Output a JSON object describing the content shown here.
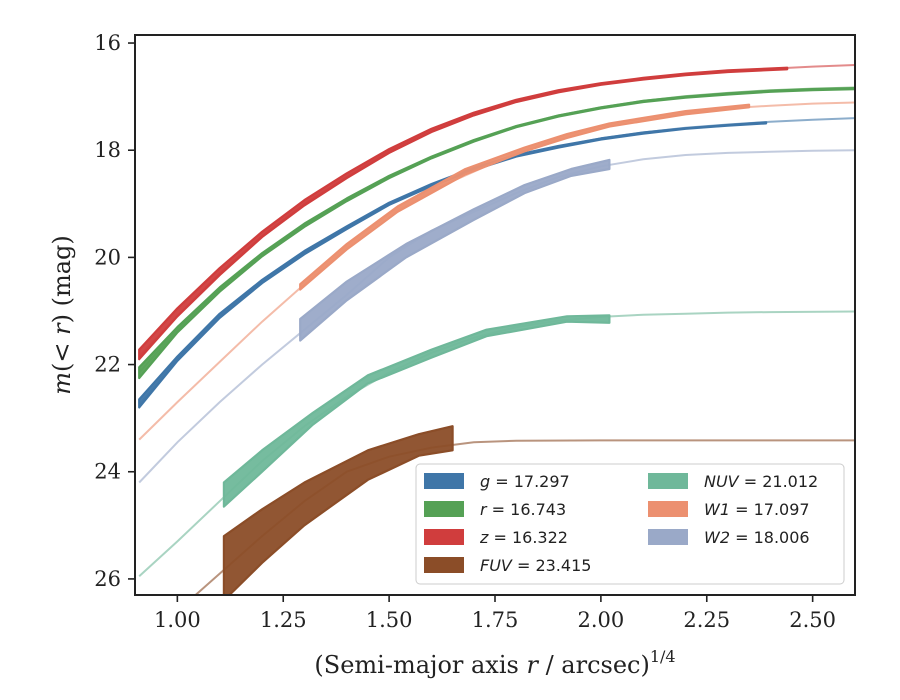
{
  "chart_data": {
    "type": "line",
    "title": "",
    "xlabel": "(Semi-major axis r / arcsec)",
    "xlabel_parts": {
      "pre": "(Semi-major axis ",
      "var": "r",
      "post": " / arcsec)",
      "sup": "1/4"
    },
    "ylabel_parts": {
      "var": "m",
      "mid": "(< ",
      "var2": "r",
      "post": ") (mag)"
    },
    "xlim": [
      0.9,
      2.6
    ],
    "ylim": [
      26.3,
      15.85
    ],
    "y_inverted": true,
    "xticks": [
      "1.00",
      "1.25",
      "1.50",
      "1.75",
      "2.00",
      "2.25",
      "2.50"
    ],
    "xtick_values": [
      1.0,
      1.25,
      1.5,
      1.75,
      2.0,
      2.25,
      2.5
    ],
    "yticks": [
      "16",
      "18",
      "20",
      "22",
      "24",
      "26"
    ],
    "ytick_values": [
      16,
      18,
      20,
      22,
      24,
      26
    ],
    "grid": false,
    "legend_position": "lower-right",
    "series": [
      {
        "key": "g",
        "label": "g",
        "value": "17.297",
        "color": "#3f76a8",
        "model": [
          [
            0.91,
            22.75
          ],
          [
            1.0,
            21.9
          ],
          [
            1.1,
            21.1
          ],
          [
            1.2,
            20.45
          ],
          [
            1.3,
            19.92
          ],
          [
            1.4,
            19.45
          ],
          [
            1.5,
            19.0
          ],
          [
            1.6,
            18.65
          ],
          [
            1.7,
            18.35
          ],
          [
            1.8,
            18.1
          ],
          [
            1.9,
            17.93
          ],
          [
            2.0,
            17.78
          ],
          [
            2.1,
            17.67
          ],
          [
            2.2,
            17.58
          ],
          [
            2.3,
            17.52
          ],
          [
            2.4,
            17.47
          ],
          [
            2.5,
            17.43
          ],
          [
            2.6,
            17.4
          ]
        ],
        "data_upper": [
          [
            0.91,
            22.65
          ],
          [
            1.0,
            21.85
          ],
          [
            1.1,
            21.05
          ],
          [
            1.2,
            20.42
          ],
          [
            1.3,
            19.88
          ],
          [
            1.4,
            19.42
          ],
          [
            1.5,
            18.98
          ],
          [
            1.6,
            18.63
          ],
          [
            1.7,
            18.33
          ],
          [
            1.8,
            18.09
          ],
          [
            1.9,
            17.92
          ],
          [
            2.0,
            17.78
          ],
          [
            2.1,
            17.67
          ],
          [
            2.2,
            17.59
          ],
          [
            2.3,
            17.53
          ],
          [
            2.39,
            17.48
          ]
        ],
        "data_lower": [
          [
            0.91,
            22.8
          ],
          [
            1.0,
            21.93
          ],
          [
            1.1,
            21.13
          ],
          [
            1.2,
            20.48
          ],
          [
            1.3,
            19.94
          ],
          [
            1.4,
            19.47
          ],
          [
            1.5,
            19.02
          ],
          [
            1.6,
            18.67
          ],
          [
            1.7,
            18.37
          ],
          [
            1.8,
            18.12
          ],
          [
            1.9,
            17.95
          ],
          [
            2.0,
            17.8
          ],
          [
            2.1,
            17.69
          ],
          [
            2.2,
            17.6
          ],
          [
            2.3,
            17.54
          ],
          [
            2.39,
            17.5
          ]
        ]
      },
      {
        "key": "r",
        "label": "r",
        "value": "16.743",
        "color": "#55a155",
        "model": [
          [
            0.91,
            22.15
          ],
          [
            1.0,
            21.35
          ],
          [
            1.1,
            20.6
          ],
          [
            1.2,
            19.95
          ],
          [
            1.3,
            19.4
          ],
          [
            1.4,
            18.92
          ],
          [
            1.5,
            18.5
          ],
          [
            1.6,
            18.13
          ],
          [
            1.7,
            17.82
          ],
          [
            1.8,
            17.55
          ],
          [
            1.9,
            17.35
          ],
          [
            2.0,
            17.2
          ],
          [
            2.1,
            17.08
          ],
          [
            2.2,
            16.99
          ],
          [
            2.3,
            16.93
          ],
          [
            2.4,
            16.88
          ],
          [
            2.5,
            16.85
          ],
          [
            2.6,
            16.83
          ]
        ],
        "data_upper": [
          [
            0.91,
            22.05
          ],
          [
            1.0,
            21.3
          ],
          [
            1.1,
            20.56
          ],
          [
            1.2,
            19.92
          ],
          [
            1.3,
            19.37
          ],
          [
            1.4,
            18.9
          ],
          [
            1.5,
            18.48
          ],
          [
            1.6,
            18.12
          ],
          [
            1.7,
            17.81
          ],
          [
            1.8,
            17.55
          ],
          [
            1.9,
            17.35
          ],
          [
            2.0,
            17.2
          ],
          [
            2.1,
            17.08
          ],
          [
            2.2,
            17.0
          ],
          [
            2.3,
            16.94
          ],
          [
            2.4,
            16.89
          ],
          [
            2.5,
            16.86
          ],
          [
            2.6,
            16.84
          ]
        ],
        "data_lower": [
          [
            0.91,
            22.25
          ],
          [
            1.0,
            21.4
          ],
          [
            1.1,
            20.64
          ],
          [
            1.2,
            19.98
          ],
          [
            1.3,
            19.43
          ],
          [
            1.4,
            18.95
          ],
          [
            1.5,
            18.52
          ],
          [
            1.6,
            18.15
          ],
          [
            1.7,
            17.84
          ],
          [
            1.8,
            17.57
          ],
          [
            1.9,
            17.37
          ],
          [
            2.0,
            17.22
          ],
          [
            2.1,
            17.1
          ],
          [
            2.2,
            17.02
          ],
          [
            2.3,
            16.96
          ],
          [
            2.4,
            16.91
          ],
          [
            2.5,
            16.88
          ],
          [
            2.6,
            16.86
          ]
        ]
      },
      {
        "key": "z",
        "label": "z",
        "value": "16.322",
        "color": "#d03d3d",
        "model": [
          [
            0.91,
            21.85
          ],
          [
            1.0,
            21.1
          ],
          [
            1.1,
            20.3
          ],
          [
            1.2,
            19.6
          ],
          [
            1.3,
            19.0
          ],
          [
            1.4,
            18.5
          ],
          [
            1.5,
            18.02
          ],
          [
            1.6,
            17.65
          ],
          [
            1.7,
            17.33
          ],
          [
            1.8,
            17.08
          ],
          [
            1.9,
            16.9
          ],
          [
            2.0,
            16.76
          ],
          [
            2.1,
            16.66
          ],
          [
            2.2,
            16.58
          ],
          [
            2.3,
            16.52
          ],
          [
            2.4,
            16.48
          ],
          [
            2.5,
            16.44
          ],
          [
            2.6,
            16.41
          ]
        ],
        "data_upper": [
          [
            0.91,
            21.72
          ],
          [
            1.0,
            20.95
          ],
          [
            1.1,
            20.2
          ],
          [
            1.2,
            19.52
          ],
          [
            1.3,
            18.93
          ],
          [
            1.4,
            18.43
          ],
          [
            1.5,
            17.98
          ],
          [
            1.6,
            17.6
          ],
          [
            1.7,
            17.3
          ],
          [
            1.8,
            17.06
          ],
          [
            1.9,
            16.88
          ],
          [
            2.0,
            16.75
          ],
          [
            2.1,
            16.65
          ],
          [
            2.2,
            16.57
          ],
          [
            2.3,
            16.51
          ],
          [
            2.44,
            16.46
          ]
        ],
        "data_lower": [
          [
            0.91,
            21.9
          ],
          [
            1.0,
            21.1
          ],
          [
            1.1,
            20.33
          ],
          [
            1.2,
            19.62
          ],
          [
            1.3,
            19.03
          ],
          [
            1.4,
            18.52
          ],
          [
            1.5,
            18.05
          ],
          [
            1.6,
            17.66
          ],
          [
            1.7,
            17.35
          ],
          [
            1.8,
            17.1
          ],
          [
            1.9,
            16.92
          ],
          [
            2.0,
            16.78
          ],
          [
            2.1,
            16.68
          ],
          [
            2.2,
            16.6
          ],
          [
            2.3,
            16.54
          ],
          [
            2.44,
            16.49
          ]
        ]
      },
      {
        "key": "FUV",
        "label": "FUV",
        "value": "23.415",
        "color": "#8b4d28",
        "model": [
          [
            0.91,
            27.3
          ],
          [
            1.0,
            26.6
          ],
          [
            1.1,
            25.9
          ],
          [
            1.2,
            25.2
          ],
          [
            1.3,
            24.55
          ],
          [
            1.4,
            24.0
          ],
          [
            1.5,
            23.72
          ],
          [
            1.6,
            23.55
          ],
          [
            1.7,
            23.45
          ],
          [
            1.8,
            23.42
          ],
          [
            2.0,
            23.415
          ],
          [
            2.3,
            23.415
          ],
          [
            2.6,
            23.415
          ]
        ],
        "data_upper": [
          [
            1.11,
            25.2
          ],
          [
            1.2,
            24.7
          ],
          [
            1.3,
            24.2
          ],
          [
            1.45,
            23.6
          ],
          [
            1.57,
            23.3
          ],
          [
            1.65,
            23.15
          ]
        ],
        "data_lower": [
          [
            1.11,
            26.4
          ],
          [
            1.2,
            25.7
          ],
          [
            1.3,
            25.0
          ],
          [
            1.45,
            24.15
          ],
          [
            1.57,
            23.7
          ],
          [
            1.65,
            23.6
          ]
        ]
      },
      {
        "key": "NUV",
        "label": "NUV",
        "value": "21.012",
        "color": "#6fb89a",
        "model": [
          [
            0.91,
            25.95
          ],
          [
            1.0,
            25.3
          ],
          [
            1.1,
            24.55
          ],
          [
            1.2,
            23.8
          ],
          [
            1.3,
            23.15
          ],
          [
            1.4,
            22.6
          ],
          [
            1.5,
            22.15
          ],
          [
            1.6,
            21.78
          ],
          [
            1.7,
            21.5
          ],
          [
            1.8,
            21.3
          ],
          [
            1.9,
            21.18
          ],
          [
            2.0,
            21.11
          ],
          [
            2.1,
            21.07
          ],
          [
            2.2,
            21.05
          ],
          [
            2.3,
            21.03
          ],
          [
            2.4,
            21.02
          ],
          [
            2.6,
            21.01
          ]
        ],
        "data_upper": [
          [
            1.11,
            24.2
          ],
          [
            1.2,
            23.6
          ],
          [
            1.32,
            22.9
          ],
          [
            1.45,
            22.2
          ],
          [
            1.6,
            21.72
          ],
          [
            1.73,
            21.35
          ],
          [
            1.92,
            21.1
          ],
          [
            2.02,
            21.08
          ]
        ],
        "data_lower": [
          [
            1.11,
            24.65
          ],
          [
            1.2,
            24.0
          ],
          [
            1.32,
            23.12
          ],
          [
            1.45,
            22.35
          ],
          [
            1.6,
            21.87
          ],
          [
            1.73,
            21.47
          ],
          [
            1.92,
            21.2
          ],
          [
            2.02,
            21.22
          ]
        ]
      },
      {
        "key": "W1",
        "label": "W1",
        "value": "17.097",
        "color": "#ec9070",
        "model": [
          [
            0.91,
            23.4
          ],
          [
            1.0,
            22.7
          ],
          [
            1.1,
            21.95
          ],
          [
            1.2,
            21.2
          ],
          [
            1.3,
            20.5
          ],
          [
            1.4,
            19.8
          ],
          [
            1.5,
            19.2
          ],
          [
            1.6,
            18.75
          ],
          [
            1.7,
            18.4
          ],
          [
            1.8,
            18.05
          ],
          [
            1.9,
            17.78
          ],
          [
            2.0,
            17.55
          ],
          [
            2.1,
            17.4
          ],
          [
            2.2,
            17.3
          ],
          [
            2.3,
            17.22
          ],
          [
            2.4,
            17.17
          ],
          [
            2.5,
            17.13
          ],
          [
            2.6,
            17.11
          ]
        ],
        "data_upper": [
          [
            1.29,
            20.5
          ],
          [
            1.4,
            19.75
          ],
          [
            1.52,
            19.05
          ],
          [
            1.68,
            18.35
          ],
          [
            1.82,
            17.95
          ],
          [
            1.92,
            17.7
          ],
          [
            2.02,
            17.5
          ],
          [
            2.2,
            17.27
          ],
          [
            2.35,
            17.15
          ]
        ],
        "data_lower": [
          [
            1.29,
            20.6
          ],
          [
            1.4,
            19.85
          ],
          [
            1.52,
            19.15
          ],
          [
            1.68,
            18.45
          ],
          [
            1.82,
            18.02
          ],
          [
            1.92,
            17.77
          ],
          [
            2.02,
            17.56
          ],
          [
            2.2,
            17.33
          ],
          [
            2.35,
            17.2
          ]
        ]
      },
      {
        "key": "W2",
        "label": "W2",
        "value": "18.006",
        "color": "#9aa9c8",
        "model": [
          [
            0.91,
            24.2
          ],
          [
            1.0,
            23.45
          ],
          [
            1.1,
            22.7
          ],
          [
            1.2,
            22.0
          ],
          [
            1.3,
            21.35
          ],
          [
            1.4,
            20.7
          ],
          [
            1.5,
            20.0
          ],
          [
            1.6,
            19.5
          ],
          [
            1.7,
            19.15
          ],
          [
            1.8,
            18.8
          ],
          [
            1.9,
            18.5
          ],
          [
            2.0,
            18.3
          ],
          [
            2.1,
            18.17
          ],
          [
            2.2,
            18.09
          ],
          [
            2.3,
            18.05
          ],
          [
            2.4,
            18.03
          ],
          [
            2.5,
            18.01
          ],
          [
            2.6,
            18.0
          ]
        ],
        "data_upper": [
          [
            1.29,
            21.15
          ],
          [
            1.4,
            20.45
          ],
          [
            1.54,
            19.75
          ],
          [
            1.7,
            19.1
          ],
          [
            1.82,
            18.65
          ],
          [
            1.93,
            18.35
          ],
          [
            2.02,
            18.18
          ]
        ],
        "data_lower": [
          [
            1.29,
            21.55
          ],
          [
            1.4,
            20.8
          ],
          [
            1.54,
            20.0
          ],
          [
            1.7,
            19.3
          ],
          [
            1.82,
            18.8
          ],
          [
            1.93,
            18.48
          ],
          [
            2.02,
            18.35
          ]
        ]
      }
    ],
    "legend": {
      "eq_sign": "=",
      "order": [
        "g",
        "r",
        "z",
        "FUV",
        "NUV",
        "W1",
        "W2"
      ]
    }
  }
}
